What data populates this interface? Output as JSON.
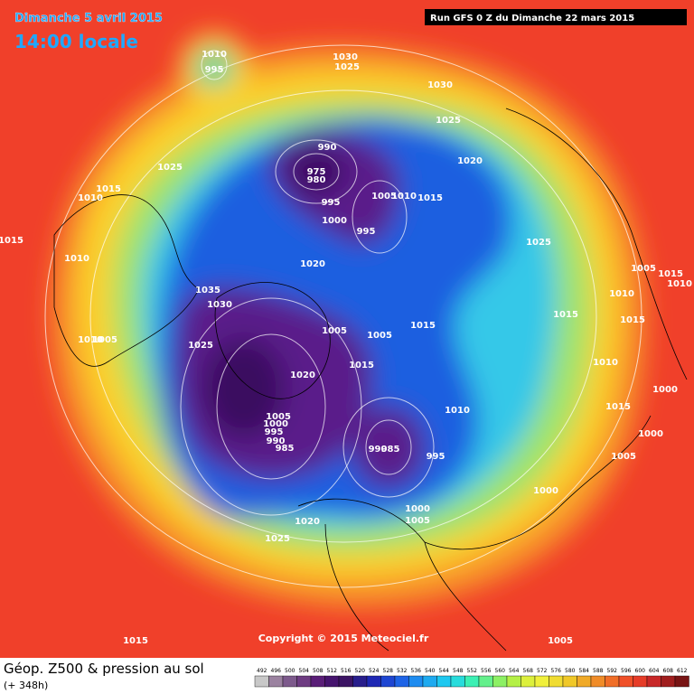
{
  "title": "Dimanche 5 avril 2015",
  "time": "14:00 locale",
  "run": "Run GFS 0 Z du Dimanche 22 mars 2015",
  "copyright": "Copyright © 2015 Meteociel.fr",
  "field": "Géop. Z500 & pression au sol",
  "lead": "(+ 348h)",
  "scale": [
    492,
    496,
    500,
    504,
    508,
    512,
    516,
    520,
    524,
    528,
    532,
    536,
    540,
    544,
    548,
    552,
    556,
    560,
    564,
    568,
    572,
    576,
    580,
    584,
    588,
    592,
    596,
    600,
    604,
    608,
    612
  ],
  "isobar_labels": [
    "1010",
    "995",
    "1030",
    "1025",
    "1030",
    "1025",
    "1025",
    "1015",
    "1010",
    "1015",
    "1010",
    "990",
    "975",
    "980",
    "995",
    "1000",
    "1005",
    "1010",
    "1015",
    "995",
    "1020",
    "1025",
    "1020",
    "1035",
    "1030",
    "1025",
    "1005",
    "1015",
    "1010",
    "1010",
    "1015",
    "1015",
    "1005",
    "1005",
    "1015",
    "1015",
    "1020",
    "1010",
    "1000",
    "1015",
    "1000",
    "1010",
    "1005",
    "1000",
    "995",
    "990",
    "985",
    "990",
    "985",
    "995",
    "1005",
    "1000",
    "1000",
    "1005",
    "1020",
    "1025",
    "1015",
    "1005",
    "1010",
    "1005"
  ]
}
